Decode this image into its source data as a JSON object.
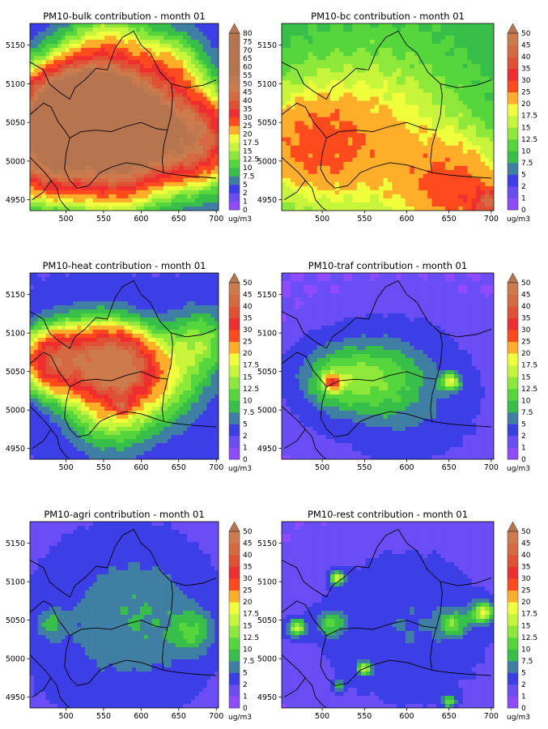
{
  "palette": [
    "#8f4bff",
    "#6a4df4",
    "#3c3ee6",
    "#3f7fa3",
    "#37bf49",
    "#56d63d",
    "#8ee83a",
    "#c6f53b",
    "#f0ff3c",
    "#ffae2a",
    "#ff4a1e",
    "#ef2f2f",
    "#df5034",
    "#d56a42",
    "#cd7a4d",
    "#c07a4f",
    "#b7754f"
  ],
  "chart_data": [
    {
      "type": "heatmap",
      "title": "PM10-bulk contribution - month 01",
      "x_ticks": [
        "500",
        "550",
        "600",
        "650",
        "700"
      ],
      "y_ticks": [
        "4950",
        "5000",
        "5050",
        "5100",
        "5150"
      ],
      "xlim": [
        452,
        703
      ],
      "ylim": [
        4936,
        5178
      ],
      "colorbar_levels": [
        "0",
        "1",
        "2",
        "5",
        "7.5",
        "10",
        "12.5",
        "15",
        "17.5",
        "20",
        "25",
        "30",
        "35",
        "40",
        "45",
        "50",
        "55",
        "60",
        "65",
        "70",
        "75",
        "80"
      ],
      "colorbar_unit": "ug/m3",
      "colorbar_extend": "max",
      "hotspots": [
        {
          "x": 490,
          "y": 5060,
          "value": 62,
          "spread": 38
        },
        {
          "x": 540,
          "y": 5065,
          "value": 60,
          "spread": 40
        },
        {
          "x": 590,
          "y": 5045,
          "value": 52,
          "spread": 40
        },
        {
          "x": 670,
          "y": 5030,
          "value": 42,
          "spread": 40
        },
        {
          "x": 560,
          "y": 5000,
          "value": 30,
          "spread": 45
        },
        {
          "x": 470,
          "y": 5000,
          "value": 34,
          "spread": 35
        },
        {
          "x": 560,
          "y": 5140,
          "value": 15,
          "spread": 40
        },
        {
          "x": 640,
          "y": 5120,
          "value": 14,
          "spread": 30
        }
      ],
      "background": 3
    },
    {
      "type": "heatmap",
      "title": "PM10-bc contribution - month 01",
      "x_ticks": [
        "500",
        "550",
        "600",
        "650",
        "700"
      ],
      "y_ticks": [
        "4950",
        "5000",
        "5050",
        "5100",
        "5150"
      ],
      "xlim": [
        452,
        703
      ],
      "ylim": [
        4936,
        5178
      ],
      "colorbar_levels": [
        "0",
        "1",
        "2",
        "5",
        "7.5",
        "10",
        "12.5",
        "15",
        "17.5",
        "20",
        "25",
        "30",
        "35",
        "40",
        "45",
        "50"
      ],
      "colorbar_unit": "ug/m3",
      "colorbar_extend": "max",
      "hotspots": [
        {
          "x": 560,
          "y": 5030,
          "value": 12,
          "spread": 80
        },
        {
          "x": 660,
          "y": 4960,
          "value": 16,
          "spread": 45
        },
        {
          "x": 700,
          "y": 4945,
          "value": 22,
          "spread": 15
        },
        {
          "x": 480,
          "y": 5020,
          "value": 12,
          "spread": 50
        }
      ],
      "background": 8
    },
    {
      "type": "heatmap",
      "title": "PM10-heat contribution - month 01",
      "x_ticks": [
        "500",
        "550",
        "600",
        "650",
        "700"
      ],
      "y_ticks": [
        "4950",
        "5000",
        "5050",
        "5100",
        "5150"
      ],
      "xlim": [
        452,
        703
      ],
      "ylim": [
        4936,
        5178
      ],
      "colorbar_levels": [
        "0",
        "1",
        "2",
        "5",
        "7.5",
        "10",
        "12.5",
        "15",
        "17.5",
        "20",
        "25",
        "30",
        "35",
        "40",
        "45",
        "50"
      ],
      "colorbar_unit": "ug/m3",
      "colorbar_extend": "max",
      "hotspots": [
        {
          "x": 480,
          "y": 5065,
          "value": 32,
          "spread": 28
        },
        {
          "x": 540,
          "y": 5065,
          "value": 30,
          "spread": 35
        },
        {
          "x": 580,
          "y": 5060,
          "value": 26,
          "spread": 30
        },
        {
          "x": 630,
          "y": 5040,
          "value": 12,
          "spread": 40
        },
        {
          "x": 560,
          "y": 5005,
          "value": 14,
          "spread": 40
        },
        {
          "x": 680,
          "y": 5090,
          "value": 10,
          "spread": 30
        },
        {
          "x": 575,
          "y": 5005,
          "value": 22,
          "spread": 6
        }
      ],
      "background": 2
    },
    {
      "type": "heatmap",
      "title": "PM10-traf contribution - month 01",
      "x_ticks": [
        "500",
        "550",
        "600",
        "650",
        "700"
      ],
      "y_ticks": [
        "4950",
        "5000",
        "5050",
        "5100",
        "5150"
      ],
      "xlim": [
        452,
        703
      ],
      "ylim": [
        4936,
        5178
      ],
      "colorbar_levels": [
        "0",
        "1",
        "2",
        "5",
        "7.5",
        "10",
        "12.5",
        "15",
        "17.5",
        "20",
        "25",
        "30",
        "35",
        "40",
        "45",
        "50"
      ],
      "colorbar_unit": "ug/m3",
      "colorbar_extend": "max",
      "hotspots": [
        {
          "x": 512,
          "y": 5036,
          "value": 20,
          "spread": 7
        },
        {
          "x": 512,
          "y": 5040,
          "value": 9,
          "spread": 30
        },
        {
          "x": 565,
          "y": 5045,
          "value": 7,
          "spread": 35
        },
        {
          "x": 652,
          "y": 5036,
          "value": 14,
          "spread": 8
        },
        {
          "x": 600,
          "y": 5020,
          "value": 5,
          "spread": 50
        }
      ],
      "background": 1
    },
    {
      "type": "heatmap",
      "title": "PM10-agri contribution - month 01",
      "x_ticks": [
        "500",
        "550",
        "600",
        "650",
        "700"
      ],
      "y_ticks": [
        "4950",
        "5000",
        "5050",
        "5100",
        "5150"
      ],
      "xlim": [
        452,
        703
      ],
      "ylim": [
        4936,
        5178
      ],
      "colorbar_levels": [
        "0",
        "1",
        "2",
        "5",
        "7.5",
        "10",
        "12.5",
        "15",
        "17.5",
        "20",
        "25",
        "30",
        "35",
        "40",
        "45",
        "50"
      ],
      "colorbar_unit": "ug/m3",
      "colorbar_extend": "max",
      "hotspots": [
        {
          "x": 560,
          "y": 5040,
          "value": 4,
          "spread": 90
        },
        {
          "x": 670,
          "y": 5035,
          "value": 6.5,
          "spread": 20
        },
        {
          "x": 480,
          "y": 5045,
          "value": 5,
          "spread": 15
        },
        {
          "x": 610,
          "y": 5060,
          "value": 3.5,
          "spread": 60
        }
      ],
      "background": 0.5
    },
    {
      "type": "heatmap",
      "title": "PM10-rest contribution - month 01",
      "x_ticks": [
        "500",
        "550",
        "600",
        "650",
        "700"
      ],
      "y_ticks": [
        "4950",
        "5000",
        "5050",
        "5100",
        "5150"
      ],
      "xlim": [
        452,
        703
      ],
      "ylim": [
        4936,
        5178
      ],
      "colorbar_levels": [
        "0",
        "1",
        "2",
        "5",
        "7.5",
        "10",
        "12.5",
        "15",
        "17.5",
        "20",
        "25",
        "30",
        "35",
        "40",
        "45",
        "50"
      ],
      "colorbar_unit": "ug/m3",
      "colorbar_extend": "max",
      "hotspots": [
        {
          "x": 518,
          "y": 5105,
          "value": 15,
          "spread": 6
        },
        {
          "x": 470,
          "y": 5040,
          "value": 14,
          "spread": 8
        },
        {
          "x": 510,
          "y": 5045,
          "value": 9,
          "spread": 12
        },
        {
          "x": 690,
          "y": 5060,
          "value": 15,
          "spread": 10
        },
        {
          "x": 655,
          "y": 5045,
          "value": 9,
          "spread": 12
        },
        {
          "x": 550,
          "y": 4987,
          "value": 13,
          "spread": 6
        },
        {
          "x": 650,
          "y": 4945,
          "value": 11,
          "spread": 6
        },
        {
          "x": 520,
          "y": 4965,
          "value": 8,
          "spread": 5
        },
        {
          "x": 600,
          "y": 5040,
          "value": 4,
          "spread": 60
        }
      ],
      "background": 1
    }
  ]
}
